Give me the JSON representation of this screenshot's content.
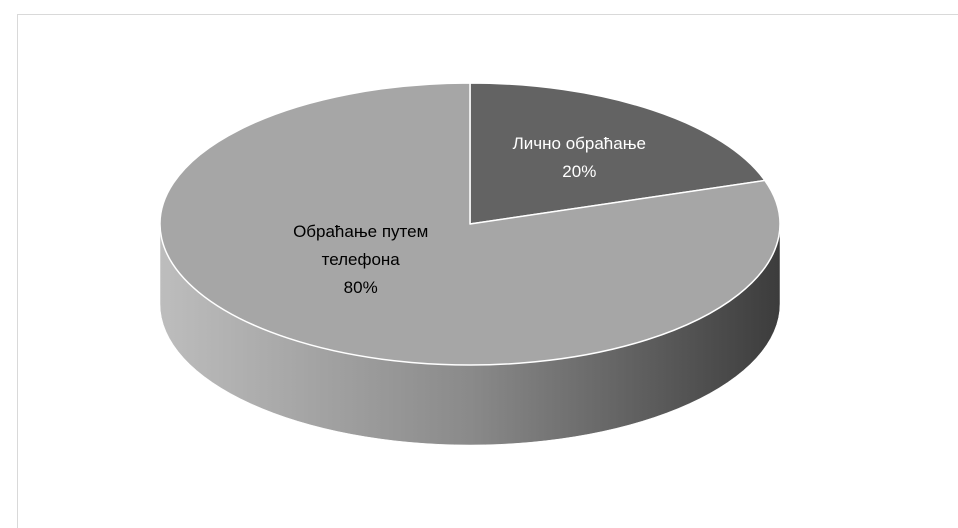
{
  "chart_data": {
    "type": "pie",
    "style": "3d",
    "categories": [
      "Лично обраћање",
      "Обраћање путем телефона"
    ],
    "values": [
      20,
      80
    ],
    "value_labels": [
      "20%",
      "80%"
    ],
    "colors": [
      "#636363",
      "#a6a6a6"
    ],
    "label_colors": [
      "#ffffff",
      "#000000"
    ]
  }
}
